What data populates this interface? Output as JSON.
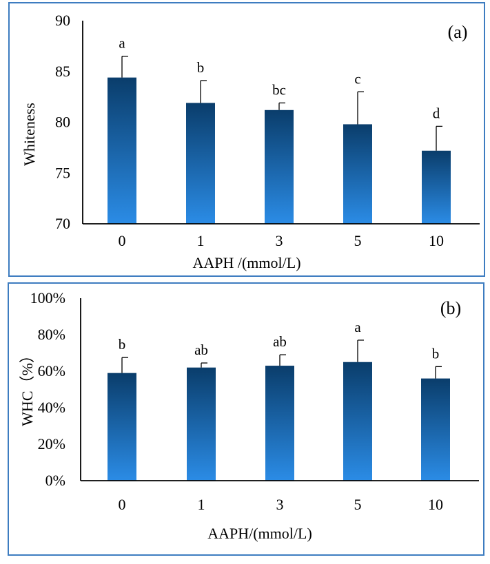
{
  "colors": {
    "frame": "#3d7cc0",
    "bar_top": "#0a3d6b",
    "bar_bottom": "#2b8ce6",
    "axis": "#000000"
  },
  "chart_data": [
    {
      "type": "bar",
      "panel_label": "(a)",
      "xlabel": "AAPH /(mmol/L)",
      "ylabel": "Whiteness",
      "categories": [
        "0",
        "1",
        "3",
        "5",
        "10"
      ],
      "values": [
        84.4,
        81.9,
        81.2,
        79.8,
        77.2
      ],
      "errors": [
        2.1,
        2.2,
        0.7,
        3.2,
        2.4
      ],
      "significance": [
        "a",
        "b",
        "bc",
        "c",
        "d"
      ],
      "ylim": [
        70,
        90
      ],
      "yticks": [
        70,
        75,
        80,
        85,
        90
      ],
      "ytick_labels": [
        "70",
        "75",
        "80",
        "85",
        "90"
      ],
      "grid": false,
      "legend": "none"
    },
    {
      "type": "bar",
      "panel_label": "(b)",
      "xlabel": "AAPH/(mmol/L)",
      "ylabel": "WHC（%）",
      "categories": [
        "0",
        "1",
        "3",
        "5",
        "10"
      ],
      "values": [
        0.59,
        0.62,
        0.63,
        0.65,
        0.56
      ],
      "errors": [
        0.085,
        0.025,
        0.06,
        0.12,
        0.065
      ],
      "significance": [
        "b",
        "ab",
        "ab",
        "a",
        "b"
      ],
      "ylim": [
        0,
        1
      ],
      "yticks": [
        0,
        0.2,
        0.4,
        0.6,
        0.8,
        1.0
      ],
      "ytick_labels": [
        "0%",
        "20%",
        "40%",
        "60%",
        "80%",
        "100%"
      ],
      "grid": false,
      "legend": "none"
    }
  ]
}
